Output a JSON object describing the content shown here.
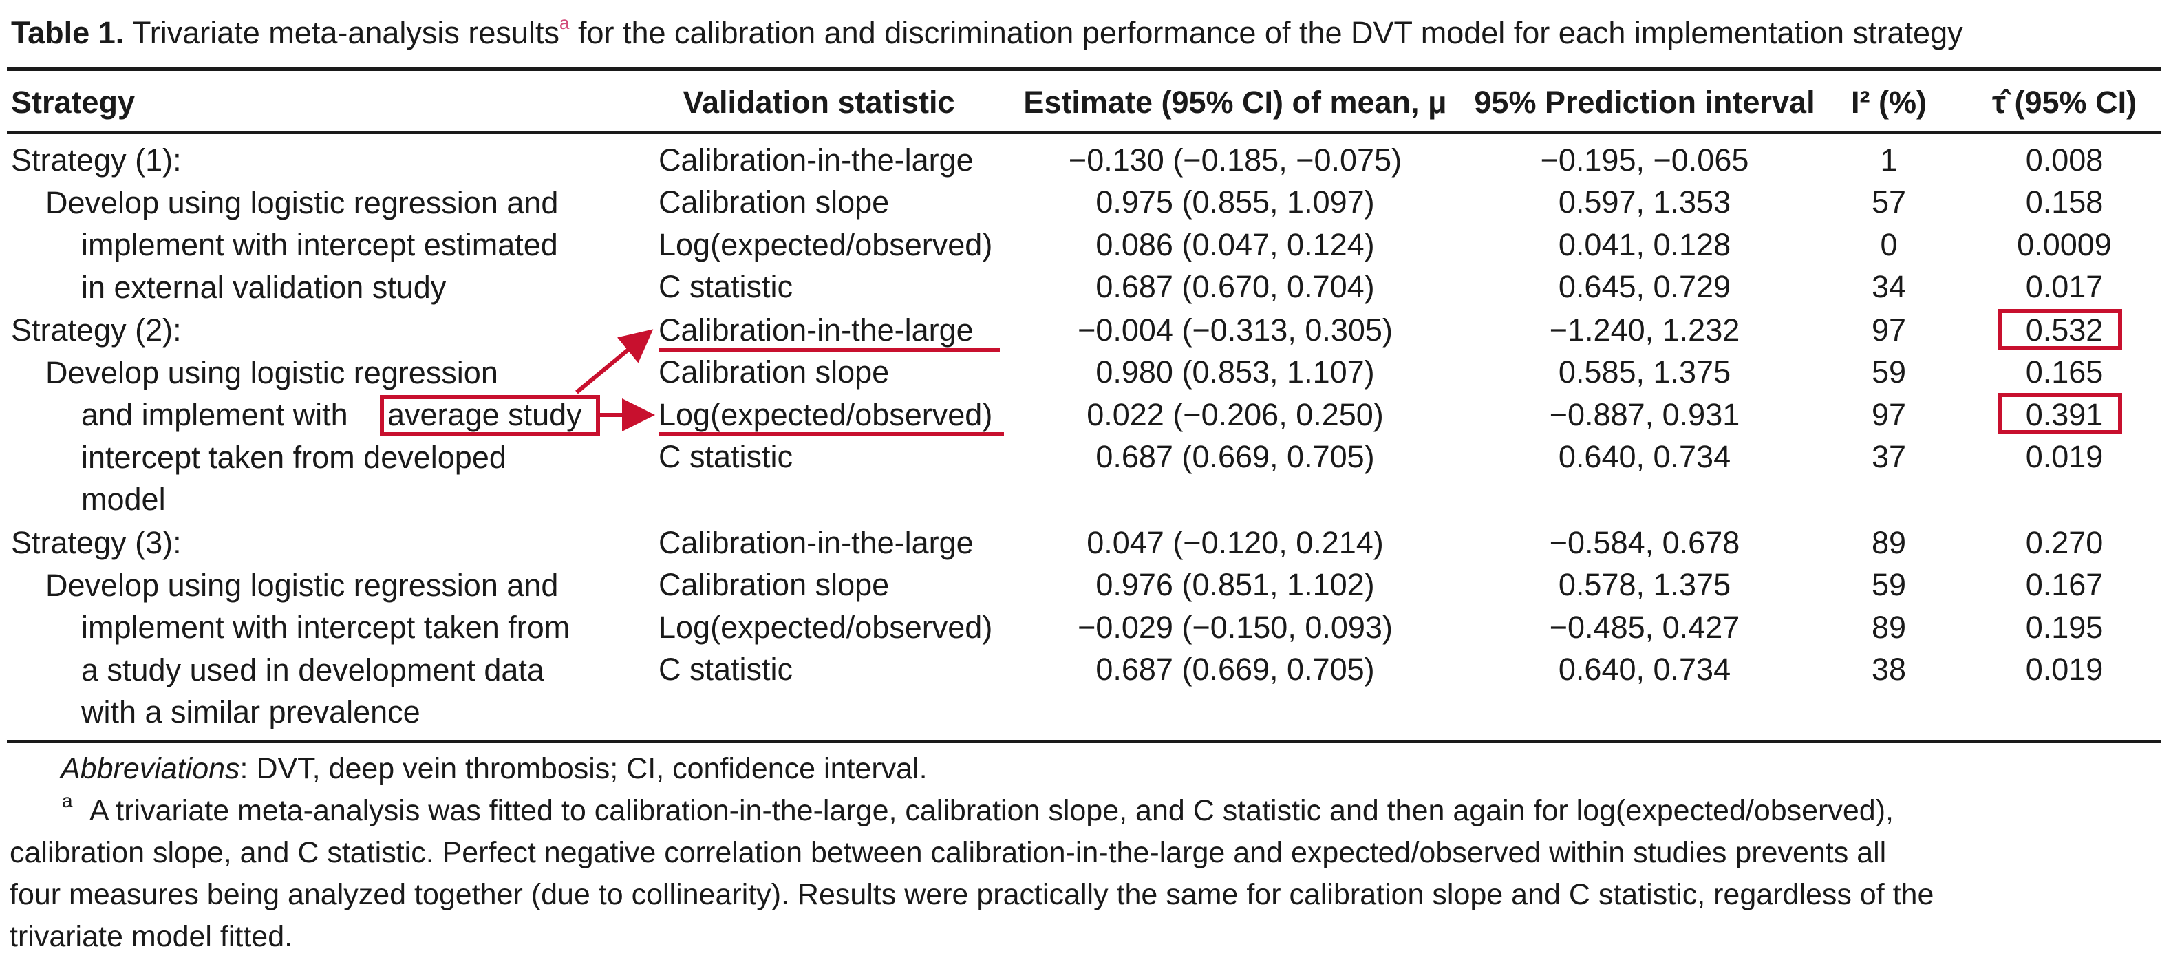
{
  "caption": {
    "label": "Table 1.",
    "text": "Trivariate meta-analysis results",
    "sup": "a",
    "text2": "for the calibration and discrimination performance of the DVT model for each implementation strategy"
  },
  "headers": {
    "strategy": "Strategy",
    "validation": "Validation statistic",
    "estimate": "Estimate (95% CI) of mean, μ",
    "prediction": "95% Prediction interval",
    "i2": "I² (%)",
    "tau": "τ̂ (95% CI)"
  },
  "strategies": [
    {
      "lines": [
        "Strategy (1):",
        "Develop using logistic regression and",
        "implement with intercept estimated",
        "in external validation study"
      ]
    },
    {
      "lines": [
        "Strategy (2):",
        "Develop using logistic regression",
        "and implement with",
        "intercept taken from developed",
        "model"
      ],
      "highlight": "average study"
    },
    {
      "lines": [
        "Strategy (3):",
        "Develop using logistic regression and",
        "implement with intercept taken from",
        "a study used in development data",
        "with a similar prevalence"
      ]
    }
  ],
  "rows": [
    {
      "stat": "Calibration-in-the-large",
      "est": "−0.130 (−0.185, −0.075)",
      "pi": "−0.195, −0.065",
      "i2": "1",
      "tau": "0.008"
    },
    {
      "stat": "Calibration slope",
      "est": "0.975 (0.855, 1.097)",
      "pi": "0.597, 1.353",
      "i2": "57",
      "tau": "0.158"
    },
    {
      "stat": "Log(expected/observed)",
      "est": "0.086 (0.047, 0.124)",
      "pi": "0.041, 0.128",
      "i2": "0",
      "tau": "0.0009"
    },
    {
      "stat": "C statistic",
      "est": "0.687 (0.670, 0.704)",
      "pi": "0.645, 0.729",
      "i2": "34",
      "tau": "0.017"
    },
    {
      "stat": "Calibration-in-the-large",
      "est": "−0.004 (−0.313, 0.305)",
      "pi": "−1.240, 1.232",
      "i2": "97",
      "tau": "0.532"
    },
    {
      "stat": "Calibration slope",
      "est": "0.980 (0.853, 1.107)",
      "pi": "0.585, 1.375",
      "i2": "59",
      "tau": "0.165"
    },
    {
      "stat": "Log(expected/observed)",
      "est": "0.022 (−0.206, 0.250)",
      "pi": "−0.887, 0.931",
      "i2": "97",
      "tau": "0.391"
    },
    {
      "stat": "C statistic",
      "est": "0.687 (0.669, 0.705)",
      "pi": "0.640, 0.734",
      "i2": "37",
      "tau": "0.019"
    },
    {
      "stat": "Calibration-in-the-large",
      "est": "0.047 (−0.120, 0.214)",
      "pi": "−0.584, 0.678",
      "i2": "89",
      "tau": "0.270"
    },
    {
      "stat": "Calibration slope",
      "est": "0.976 (0.851, 1.102)",
      "pi": "0.578, 1.375",
      "i2": "59",
      "tau": "0.167"
    },
    {
      "stat": "Log(expected/observed)",
      "est": "−0.029 (−0.150, 0.093)",
      "pi": "−0.485, 0.427",
      "i2": "89",
      "tau": "0.195"
    },
    {
      "stat": "C statistic",
      "est": "0.687 (0.669, 0.705)",
      "pi": "0.640, 0.734",
      "i2": "38",
      "tau": "0.019"
    }
  ],
  "footnotes": {
    "abbrev_label": "Abbreviations",
    "abbrev_text": ": DVT, deep vein thrombosis; CI, confidence interval.",
    "a_mark": "a",
    "a_lines": [
      "A trivariate meta-analysis was fitted to calibration-in-the-large, calibration slope, and C statistic and then again for log(expected/observed),",
      "calibration slope, and C statistic. Perfect negative correlation between calibration-in-the-large and expected/observed within studies prevents all",
      "four measures being analyzed together (due to collinearity). Results were practically the same for calibration slope and C statistic, regardless of the",
      "trivariate model fitted."
    ]
  },
  "colors": {
    "highlight": "#c8102e",
    "text": "#1a1a1a"
  }
}
